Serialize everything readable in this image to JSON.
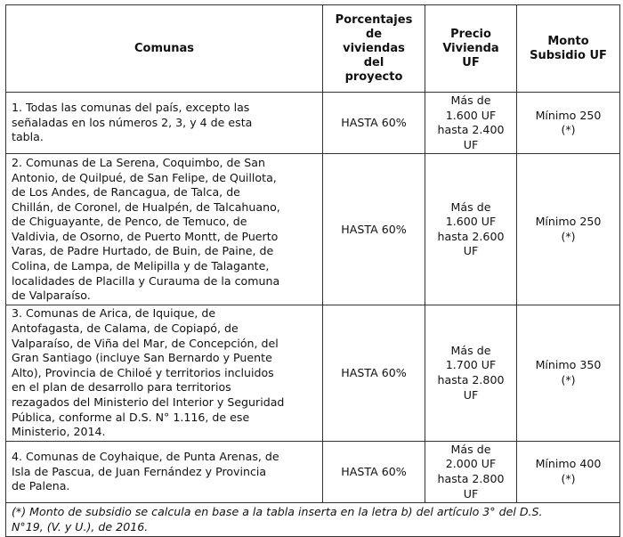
{
  "headers": [
    "Comunas",
    "Porcentajes\nde\nviviendas\ndel\nproyecto",
    "Precio\nVivienda\nUF",
    "Monto\nSubsidio UF"
  ],
  "rows": [
    {
      "comunas": "1. Todas las comunas del país, excepto las\nseñaladas en los números 2, 3, y 4 de esta\ntabla.",
      "porcentaje": "HASTA 60%",
      "precio": "Más de\n1.600 UF\nhasta 2.400\nUF",
      "monto": "Mínimo 250\n(*)"
    },
    {
      "comunas": "2. Comunas de La Serena, Coquimbo, de San\nAntonio, de Quilpué, de San Felipe, de Quillota,\nde Los Andes, de Rancagua, de Talca, de\nChillán, de Coronel, de Hualpén, de Talcahuano,\nde Chiguayante, de Penco, de Temuco, de\nValdivia, de Osorno, de Puerto Montt, de Puerto\nVaras, de Padre Hurtado, de Buin, de Paine, de\nColina, de Lampa, de Melipilla y de Talagante,\nlocalidades de Placilla y Curauma de la comuna\nde Valparaíso.",
      "porcentaje": "HASTA 60%",
      "precio": "Más de\n1.600 UF\nhasta 2.600\nUF",
      "monto": "Mínimo 250\n(*)"
    },
    {
      "comunas": "3. Comunas de Arica, de Iquique, de\nAntofagasta, de Calama, de Copiapó, de\nValparaíso, de Viña del Mar, de Concepción, del\nGran Santiago (incluye San Bernardo y Puente\nAlto), Provincia de Chiloé y territorios incluidos\nen el plan de desarrollo para territorios\nrezagados del Ministerio del Interior y Seguridad\nPública, conforme al D.S. N° 1.116, de ese\nMinisterio, 2014.",
      "porcentaje": "HASTA 60%",
      "precio": "Más de\n1.700 UF\nhasta 2.800\nUF",
      "monto": "Mínimo 350\n(*)"
    },
    {
      "comunas": "4. Comunas de Coyhaique, de Punta Arenas, de\nIsla de Pascua, de Juan Fernández y Provincia\nde Palena.",
      "porcentaje": "HASTA 60%",
      "precio": "Más de\n2.000 UF\nhasta 2.800\nUF",
      "monto": "Mínimo 400\n(*)"
    }
  ],
  "footnote": "(*) Monto de subsidio se calcula en base a la tabla inserta en la letra b) del artículo 3° del D.S.\nN°19, (V. y U.), de 2016."
}
